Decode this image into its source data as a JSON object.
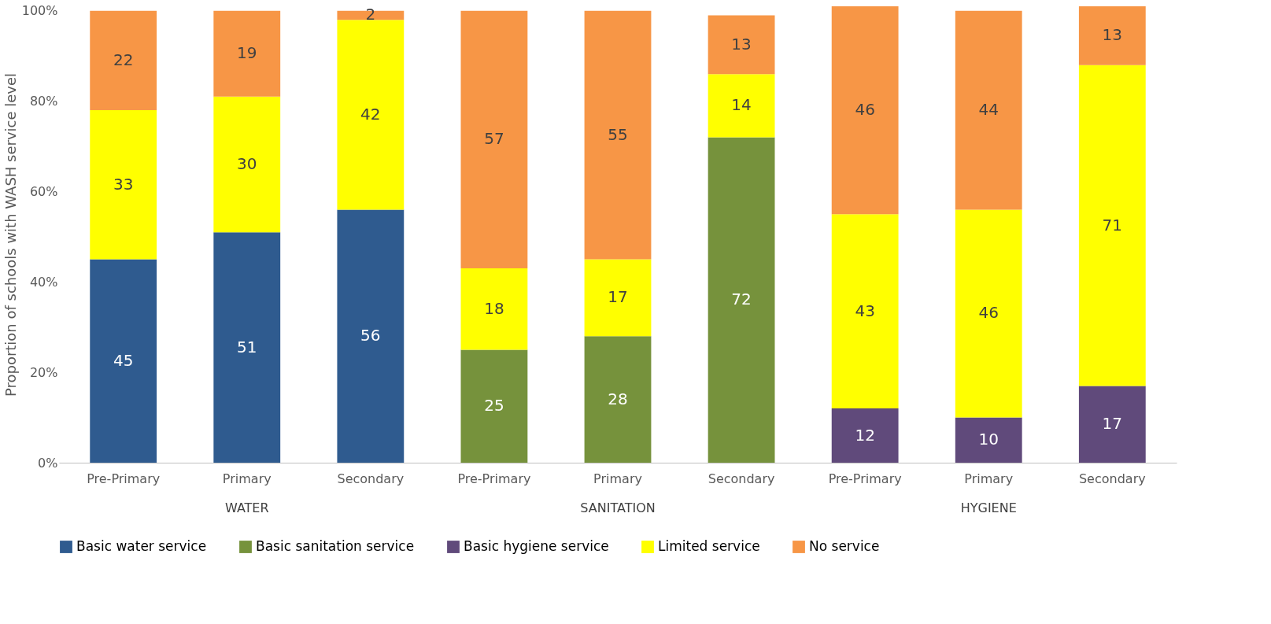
{
  "chart_data": {
    "type": "bar",
    "stacked": true,
    "data_labels": true,
    "legend": "bottom",
    "grid": false,
    "ylabel": "Proportion of schools with WASH service  level",
    "categories": [
      "Pre-Primary",
      "Primary",
      "Secondary",
      "Pre-Primary",
      "Primary",
      "Secondary",
      "Pre-Primary",
      "Primary",
      "Secondary"
    ],
    "ylim": [
      0,
      101
    ],
    "yticks": [
      {
        "value": 0,
        "label": "0%"
      },
      {
        "value": 20,
        "label": "20%"
      },
      {
        "value": 40,
        "label": "40%"
      },
      {
        "value": 60,
        "label": "60%"
      },
      {
        "value": 80,
        "label": "80%"
      },
      {
        "value": 100,
        "label": "100%"
      }
    ],
    "series": [
      {
        "name": "Basic water service",
        "color": "#2f5b8f",
        "values": [
          45,
          51,
          56,
          null,
          null,
          null,
          null,
          null,
          null
        ]
      },
      {
        "name": "Basic sanitation service",
        "color": "#76923c",
        "values": [
          null,
          null,
          null,
          25,
          28,
          72,
          null,
          null,
          null
        ]
      },
      {
        "name": "Basic hygiene service",
        "color": "#604a7b",
        "values": [
          null,
          null,
          null,
          null,
          null,
          null,
          12,
          10,
          17
        ]
      },
      {
        "name": "Limited service",
        "color": "#ffff00",
        "values": [
          33,
          30,
          42,
          18,
          17,
          14,
          43,
          46,
          71
        ]
      },
      {
        "name": "No service",
        "color": "#f79646",
        "values": [
          22,
          19,
          2,
          57,
          55,
          13,
          46,
          44,
          13
        ]
      }
    ],
    "annotations": [
      "WATER",
      "SANITATION",
      "HYGIENE"
    ]
  }
}
